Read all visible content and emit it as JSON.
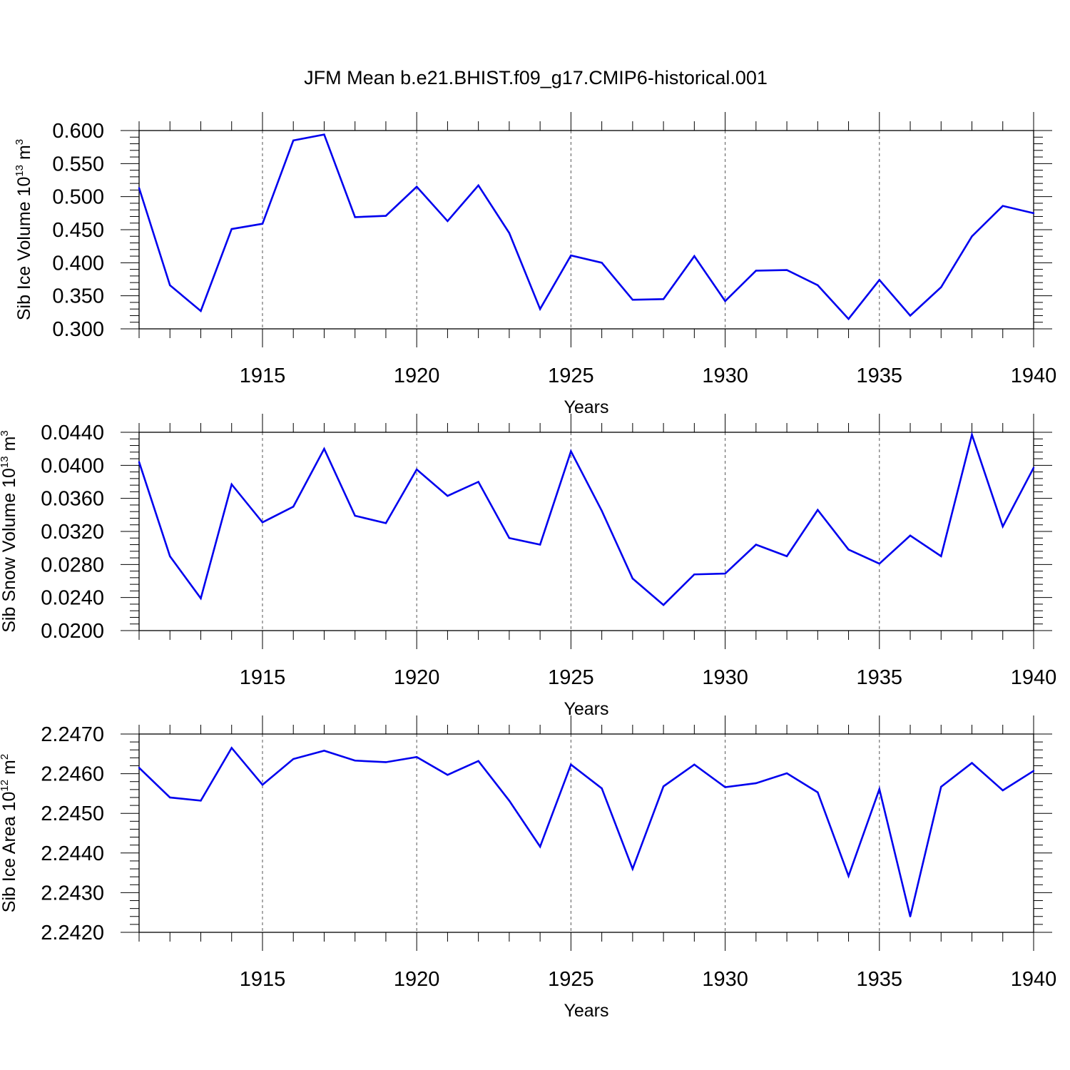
{
  "title": "JFM Mean b.e21.BHIST.f09_g17.CMIP6-historical.001",
  "colors": {
    "line": "#0000ee",
    "frame": "#000000",
    "grid": "#555555"
  },
  "chart_data": [
    {
      "type": "line",
      "ylabel": "Sib Ice Volume 10",
      "ylabel_exp": "13",
      "ylabel_unit": " m",
      "ylabel_unit_exp": "3",
      "xlabel": "Years",
      "xlim": [
        1911,
        1940
      ],
      "ylim": [
        0.3,
        0.6
      ],
      "yticks": [
        0.3,
        0.35,
        0.4,
        0.45,
        0.5,
        0.55,
        0.6
      ],
      "ytick_labels": [
        "0.300",
        "0.350",
        "0.400",
        "0.450",
        "0.500",
        "0.550",
        "0.600"
      ],
      "xticks": [
        1915,
        1920,
        1925,
        1930,
        1935,
        1940
      ],
      "xtick_labels": [
        "1915",
        "1920",
        "1925",
        "1930",
        "1935",
        "1940"
      ],
      "x": [
        1911,
        1912,
        1913,
        1914,
        1915,
        1916,
        1917,
        1918,
        1919,
        1920,
        1921,
        1922,
        1923,
        1924,
        1925,
        1926,
        1927,
        1928,
        1929,
        1930,
        1931,
        1932,
        1933,
        1934,
        1935,
        1936,
        1937,
        1938,
        1939,
        1940
      ],
      "values": [
        0.513,
        0.366,
        0.327,
        0.451,
        0.459,
        0.585,
        0.594,
        0.469,
        0.471,
        0.515,
        0.463,
        0.517,
        0.445,
        0.33,
        0.411,
        0.4,
        0.344,
        0.345,
        0.41,
        0.342,
        0.388,
        0.389,
        0.366,
        0.315,
        0.374,
        0.32,
        0.363,
        0.44,
        0.486,
        0.475
      ]
    },
    {
      "type": "line",
      "ylabel": "Sib Snow Volume 10",
      "ylabel_exp": "13",
      "ylabel_unit": " m",
      "ylabel_unit_exp": "3",
      "xlabel": "Years",
      "xlim": [
        1911,
        1940
      ],
      "ylim": [
        0.02,
        0.044
      ],
      "yticks": [
        0.02,
        0.024,
        0.028,
        0.032,
        0.036,
        0.04,
        0.044
      ],
      "ytick_labels": [
        "0.0200",
        "0.0240",
        "0.0280",
        "0.0320",
        "0.0360",
        "0.0400",
        "0.0440"
      ],
      "xticks": [
        1915,
        1920,
        1925,
        1930,
        1935,
        1940
      ],
      "xtick_labels": [
        "1915",
        "1920",
        "1925",
        "1930",
        "1935",
        "1940"
      ],
      "x": [
        1911,
        1912,
        1913,
        1914,
        1915,
        1916,
        1917,
        1918,
        1919,
        1920,
        1921,
        1922,
        1923,
        1924,
        1925,
        1926,
        1927,
        1928,
        1929,
        1930,
        1931,
        1932,
        1933,
        1934,
        1935,
        1936,
        1937,
        1938,
        1939,
        1940
      ],
      "values": [
        0.0404,
        0.029,
        0.0239,
        0.0377,
        0.0331,
        0.035,
        0.042,
        0.0339,
        0.033,
        0.0395,
        0.0363,
        0.038,
        0.0312,
        0.0304,
        0.0417,
        0.0345,
        0.0263,
        0.0231,
        0.0268,
        0.0269,
        0.0304,
        0.029,
        0.0346,
        0.0298,
        0.0281,
        0.0315,
        0.029,
        0.0437,
        0.0326,
        0.0397
      ]
    },
    {
      "type": "line",
      "ylabel": "Sib Ice Area 10",
      "ylabel_exp": "12",
      "ylabel_unit": " m",
      "ylabel_unit_exp": "2",
      "xlabel": "Years",
      "xlim": [
        1911,
        1940
      ],
      "ylim": [
        2.242,
        2.247
      ],
      "yticks": [
        2.242,
        2.243,
        2.244,
        2.245,
        2.246,
        2.247
      ],
      "ytick_labels": [
        "2.2420",
        "2.2430",
        "2.2440",
        "2.2450",
        "2.2460",
        "2.2470"
      ],
      "xticks": [
        1915,
        1920,
        1925,
        1930,
        1935,
        1940
      ],
      "xtick_labels": [
        "1915",
        "1920",
        "1925",
        "1930",
        "1935",
        "1940"
      ],
      "x": [
        1911,
        1912,
        1913,
        1914,
        1915,
        1916,
        1917,
        1918,
        1919,
        1920,
        1921,
        1922,
        1923,
        1924,
        1925,
        1926,
        1927,
        1928,
        1929,
        1930,
        1931,
        1932,
        1933,
        1934,
        1935,
        1936,
        1937,
        1938,
        1939,
        1940
      ],
      "values": [
        2.24615,
        2.2454,
        2.24532,
        2.24665,
        2.24572,
        2.24637,
        2.24658,
        2.24633,
        2.24629,
        2.24642,
        2.24597,
        2.24632,
        2.24532,
        2.24416,
        2.24623,
        2.24563,
        2.2436,
        2.24568,
        2.24623,
        2.24566,
        2.24576,
        2.24601,
        2.24553,
        2.24342,
        2.24561,
        2.2424,
        2.24567,
        2.24627,
        2.24558,
        2.24607
      ]
    }
  ]
}
